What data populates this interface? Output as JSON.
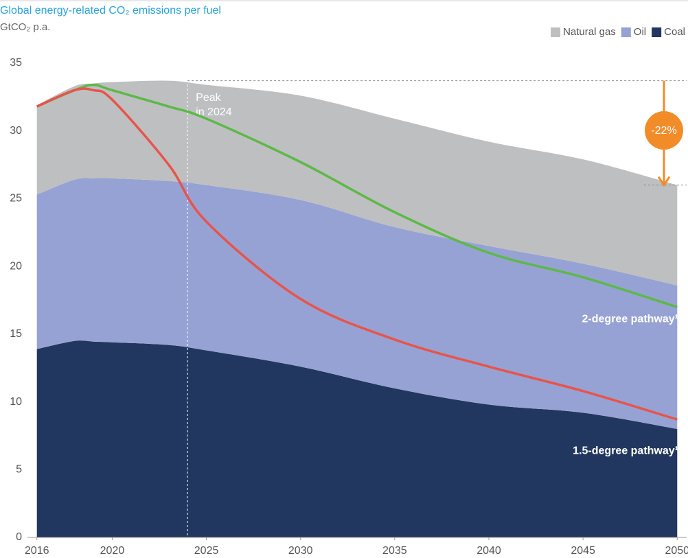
{
  "chart_data": {
    "type": "stacked_area",
    "title": "Global energy-related CO₂ emissions per fuel",
    "subtitle": "GtCO₂ p.a.",
    "x": [
      2016,
      2018,
      2019,
      2020,
      2023,
      2025,
      2030,
      2035,
      2040,
      2045,
      2050
    ],
    "series": [
      {
        "name": "Coal",
        "color": "#22375f",
        "values": [
          13.9,
          14.5,
          14.45,
          14.4,
          14.2,
          13.8,
          12.6,
          11.0,
          9.8,
          9.2,
          8.0
        ]
      },
      {
        "name": "Oil",
        "color": "#96a2d4",
        "values": [
          11.4,
          11.9,
          12.05,
          12.1,
          12.1,
          12.2,
          12.3,
          11.9,
          11.7,
          11.0,
          10.6
        ]
      },
      {
        "name": "Natural gas",
        "color": "#bebfc1",
        "values": [
          6.6,
          6.9,
          7.0,
          7.1,
          7.4,
          7.4,
          7.7,
          8.0,
          7.7,
          7.7,
          7.4
        ]
      }
    ],
    "lines": [
      {
        "name": "2-degree pathway¹",
        "color": "#5cb946",
        "values": [
          31.8,
          33.0,
          33.4,
          33.0,
          31.8,
          30.9,
          27.7,
          24.0,
          21.0,
          19.2,
          17.0
        ]
      },
      {
        "name": "1.5-degree pathway¹",
        "color": "#e8544a",
        "values": [
          31.8,
          33.0,
          33.0,
          32.3,
          27.5,
          23.3,
          17.6,
          14.6,
          12.6,
          10.8,
          8.7
        ]
      }
    ],
    "peak": {
      "x": 2024,
      "label": [
        "Peak",
        "in 2024"
      ]
    },
    "change": {
      "value": -22,
      "label": "-22%",
      "color": "#f28c28"
    },
    "xlim": [
      2015.5,
      2050.5
    ],
    "xticks": [
      2016,
      2020,
      2025,
      2030,
      2035,
      2040,
      2045,
      2050
    ],
    "ylim": [
      0,
      35
    ],
    "yticks": [
      0,
      5,
      10,
      15,
      20,
      25,
      30,
      35
    ],
    "grid": false,
    "legend": "top-right"
  }
}
